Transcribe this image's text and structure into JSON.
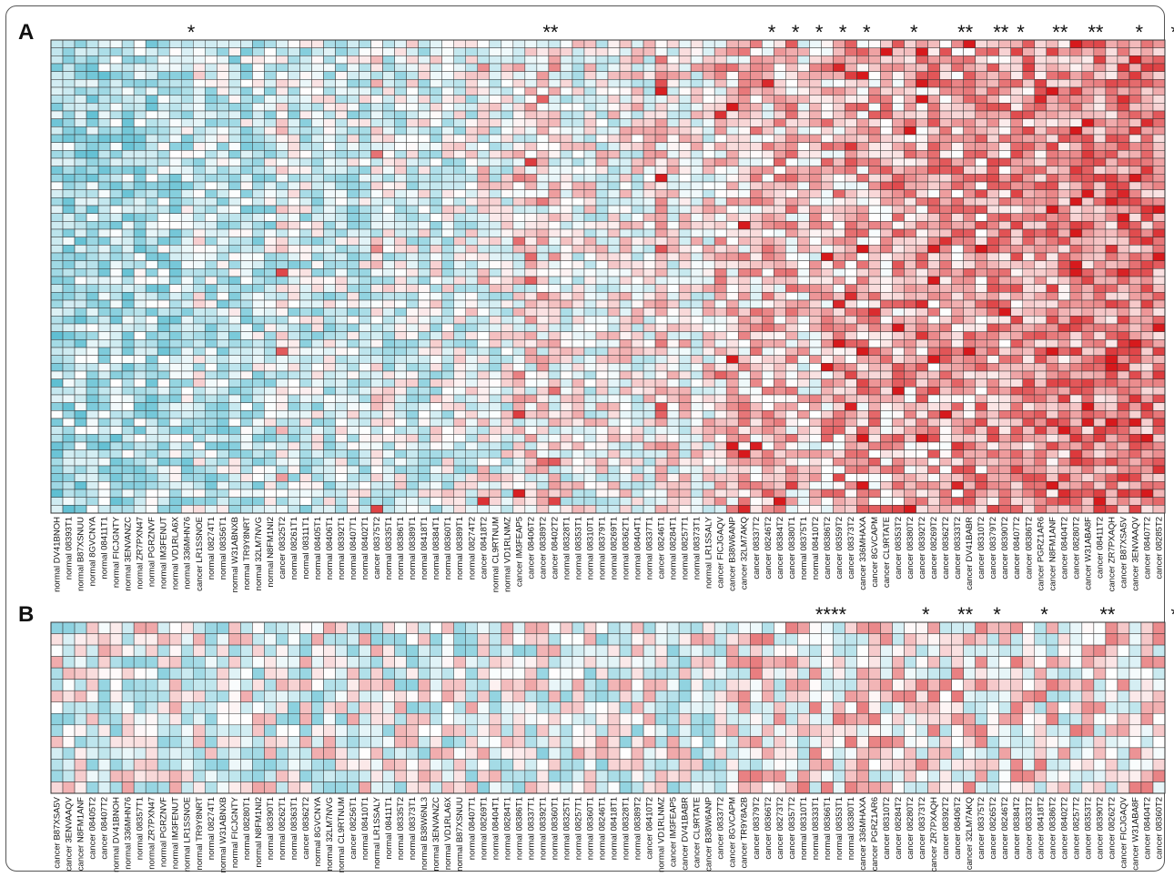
{
  "figure": {
    "panels": [
      {
        "letter": "A",
        "rows": 60,
        "cols": [
          {
            "group": "normal",
            "id": "DV41BNOH"
          },
          {
            "group": "normal",
            "id": "08393T1"
          },
          {
            "group": "normal",
            "id": "B87XSNUU"
          },
          {
            "group": "normal",
            "id": "8GVCNYA"
          },
          {
            "group": "normal",
            "id": "08411T1"
          },
          {
            "group": "normal",
            "id": "FICJGNTY"
          },
          {
            "group": "normal",
            "id": "3ENVANZC"
          },
          {
            "group": "normal",
            "id": "ZR7PXN47"
          },
          {
            "group": "normal",
            "id": "PGRZNVF"
          },
          {
            "group": "normal",
            "id": "IM3FENUT"
          },
          {
            "group": "normal",
            "id": "VD1RLA6X"
          },
          {
            "group": "normal",
            "id": "336MHN76"
          },
          {
            "group": "cancer",
            "id": "LR1SSNOE"
          },
          {
            "group": "normal",
            "id": "08274T1"
          },
          {
            "group": "normal",
            "id": "08356T1"
          },
          {
            "group": "normal",
            "id": "W31ABNXB"
          },
          {
            "group": "normal",
            "id": "TR9Y8NRT"
          },
          {
            "group": "normal",
            "id": "32LM7NVG"
          },
          {
            "group": "normal",
            "id": "N8FM1NI2"
          },
          {
            "group": "cancer",
            "id": "08325T2"
          },
          {
            "group": "normal",
            "id": "08261T1"
          },
          {
            "group": "normal",
            "id": "08311T1"
          },
          {
            "group": "normal",
            "id": "08405T1"
          },
          {
            "group": "normal",
            "id": "08406T1"
          },
          {
            "group": "normal",
            "id": "08392T1"
          },
          {
            "group": "normal",
            "id": "08407T1"
          },
          {
            "group": "normal",
            "id": "08402T1"
          },
          {
            "group": "cancer",
            "id": "08375T2"
          },
          {
            "group": "normal",
            "id": "08335T1"
          },
          {
            "group": "normal",
            "id": "08386T1"
          },
          {
            "group": "normal",
            "id": "08389T1"
          },
          {
            "group": "normal",
            "id": "08418T1"
          },
          {
            "group": "normal",
            "id": "08384T1"
          },
          {
            "group": "normal",
            "id": "08360T1"
          },
          {
            "group": "normal",
            "id": "08389T1"
          },
          {
            "group": "normal",
            "id": "08274T2"
          },
          {
            "group": "cancer",
            "id": "08418T2"
          },
          {
            "group": "normal",
            "id": "CL9RTNUM"
          },
          {
            "group": "normal",
            "id": "VD1RLNMZ"
          },
          {
            "group": "cancer",
            "id": "IM3FEAP5"
          },
          {
            "group": "cancer",
            "id": "08406T2"
          },
          {
            "group": "cancer",
            "id": "08389T2"
          },
          {
            "group": "cancer",
            "id": "08402T2"
          },
          {
            "group": "normal",
            "id": "08328T1"
          },
          {
            "group": "normal",
            "id": "08353T1"
          },
          {
            "group": "normal",
            "id": "08310T1"
          },
          {
            "group": "normal",
            "id": "08379T1"
          },
          {
            "group": "normal",
            "id": "08269T1"
          },
          {
            "group": "normal",
            "id": "08362T1"
          },
          {
            "group": "normal",
            "id": "08404T1"
          },
          {
            "group": "normal",
            "id": "08337T1"
          },
          {
            "group": "cancer",
            "id": "08246T1"
          },
          {
            "group": "normal",
            "id": "08284T1"
          },
          {
            "group": "normal",
            "id": "08257T1"
          },
          {
            "group": "normal",
            "id": "08373T1"
          },
          {
            "group": "normal",
            "id": "LR1SSALY"
          },
          {
            "group": "cancer",
            "id": "FICJGAQV"
          },
          {
            "group": "cancer",
            "id": "B38W6ANP"
          },
          {
            "group": "cancer",
            "id": "32LM7AKQ"
          },
          {
            "group": "cancer",
            "id": "08337T2"
          },
          {
            "group": "cancer",
            "id": "08246T2"
          },
          {
            "group": "cancer",
            "id": "08384T2"
          },
          {
            "group": "cancer",
            "id": "08380T1"
          },
          {
            "group": "normal",
            "id": "08375T1"
          },
          {
            "group": "normal",
            "id": "08410T2"
          },
          {
            "group": "cancer",
            "id": "08386T2"
          },
          {
            "group": "cancer",
            "id": "08359T2"
          },
          {
            "group": "cancer",
            "id": "08373T2"
          },
          {
            "group": "cancer",
            "id": "336MHAXA"
          },
          {
            "group": "cancer",
            "id": "8GVCAPM"
          },
          {
            "group": "cancer",
            "id": "CL9RTATE"
          },
          {
            "group": "cancer",
            "id": "08353T2"
          },
          {
            "group": "cancer",
            "id": "08380T2"
          },
          {
            "group": "cancer",
            "id": "08392T2"
          },
          {
            "group": "cancer",
            "id": "08269T2"
          },
          {
            "group": "cancer",
            "id": "08362T2"
          },
          {
            "group": "cancer",
            "id": "08333T2"
          },
          {
            "group": "cancer",
            "id": "DV41BABR"
          },
          {
            "group": "cancer",
            "id": "08310T2"
          },
          {
            "group": "cancer",
            "id": "08379T2"
          },
          {
            "group": "cancer",
            "id": "08390T2"
          },
          {
            "group": "cancer",
            "id": "08407T2"
          },
          {
            "group": "cancer",
            "id": "08386T2"
          },
          {
            "group": "cancer",
            "id": "PGRZ1AR6"
          },
          {
            "group": "cancer",
            "id": "N8FM1ANF"
          },
          {
            "group": "cancer",
            "id": "08404T2"
          },
          {
            "group": "cancer",
            "id": "08280T2"
          },
          {
            "group": "cancer",
            "id": "W31ABA8F"
          },
          {
            "group": "cancer",
            "id": "08411T2"
          },
          {
            "group": "cancer",
            "id": "ZR7PXAQH"
          },
          {
            "group": "cancer",
            "id": "B87XSA5V"
          },
          {
            "group": "cancer",
            "id": "3ENVAAQV"
          },
          {
            "group": "cancer",
            "id": "08407T2"
          },
          {
            "group": "cancer",
            "id": "08285T2"
          }
        ],
        "stars": [
          {
            "col": 11,
            "text": "*"
          },
          {
            "col": 41,
            "text": "**"
          },
          {
            "col": 60,
            "text": "*"
          },
          {
            "col": 62,
            "text": "*"
          },
          {
            "col": 64,
            "text": "*"
          },
          {
            "col": 66,
            "text": "*"
          },
          {
            "col": 68,
            "text": "*"
          },
          {
            "col": 72,
            "text": "*"
          },
          {
            "col": 76,
            "text": "**"
          },
          {
            "col": 79,
            "text": "**"
          },
          {
            "col": 81,
            "text": "*"
          },
          {
            "col": 84,
            "text": "**"
          },
          {
            "col": 87,
            "text": "**"
          },
          {
            "col": 91,
            "text": "*"
          },
          {
            "col": 94,
            "text": "***"
          }
        ]
      },
      {
        "letter": "B",
        "rows": 15,
        "cols": [
          {
            "group": "cancer",
            "id": "B87XSA5V"
          },
          {
            "group": "cancer",
            "id": "3ENVAAQV"
          },
          {
            "group": "cancer",
            "id": "N8FM1ANF"
          },
          {
            "group": "cancer",
            "id": "08405T2"
          },
          {
            "group": "cancer",
            "id": "08407T2"
          },
          {
            "group": "normal",
            "id": "DV41BNOH"
          },
          {
            "group": "normal",
            "id": "336MHN76"
          },
          {
            "group": "normal",
            "id": "08357T1"
          },
          {
            "group": "normal",
            "id": "ZR7PXN47"
          },
          {
            "group": "normal",
            "id": "PGRZNVF"
          },
          {
            "group": "normal",
            "id": "IM3FENUT"
          },
          {
            "group": "normal",
            "id": "LR1SSNOE"
          },
          {
            "group": "normal",
            "id": "TR9Y8NRT"
          },
          {
            "group": "normal",
            "id": "08274T1"
          },
          {
            "group": "normal",
            "id": "W31ABNXB"
          },
          {
            "group": "normal",
            "id": "FICJGNTY"
          },
          {
            "group": "normal",
            "id": "08280T1"
          },
          {
            "group": "normal",
            "id": "N8FM1NI2"
          },
          {
            "group": "normal",
            "id": "08390T1"
          },
          {
            "group": "normal",
            "id": "08262T1"
          },
          {
            "group": "normal",
            "id": "08363T1"
          },
          {
            "group": "cancer",
            "id": "08362T2"
          },
          {
            "group": "normal",
            "id": "8GVCNYA"
          },
          {
            "group": "normal",
            "id": "32LM7NVG"
          },
          {
            "group": "normal",
            "id": "CL9RTNUM"
          },
          {
            "group": "cancer",
            "id": "08256T1"
          },
          {
            "group": "normal",
            "id": "08410T1"
          },
          {
            "group": "normal",
            "id": "LR1SSALY"
          },
          {
            "group": "normal",
            "id": "08411T1"
          },
          {
            "group": "normal",
            "id": "08335T2"
          },
          {
            "group": "normal",
            "id": "08373T1"
          },
          {
            "group": "normal",
            "id": "B38W6NL3"
          },
          {
            "group": "normal",
            "id": "3ENVANZC"
          },
          {
            "group": "normal",
            "id": "VD1RLA6X"
          },
          {
            "group": "normal",
            "id": "B87XSNUU"
          },
          {
            "group": "normal",
            "id": "08407T1"
          },
          {
            "group": "normal",
            "id": "08269T1"
          },
          {
            "group": "normal",
            "id": "08404T1"
          },
          {
            "group": "normal",
            "id": "08284T1"
          },
          {
            "group": "normal",
            "id": "08386T1"
          },
          {
            "group": "normal",
            "id": "08337T1"
          },
          {
            "group": "normal",
            "id": "08392T1"
          },
          {
            "group": "normal",
            "id": "08360T1"
          },
          {
            "group": "normal",
            "id": "08325T1"
          },
          {
            "group": "normal",
            "id": "08257T1"
          },
          {
            "group": "normal",
            "id": "08360T1"
          },
          {
            "group": "normal",
            "id": "08246T1"
          },
          {
            "group": "normal",
            "id": "08418T1"
          },
          {
            "group": "normal",
            "id": "08328T1"
          },
          {
            "group": "normal",
            "id": "08389T2"
          },
          {
            "group": "cancer",
            "id": "08410T2"
          },
          {
            "group": "normal",
            "id": "VD1RLNMZ"
          },
          {
            "group": "cancer",
            "id": "IM3FEAP5"
          },
          {
            "group": "cancer",
            "id": "DV41BABR"
          },
          {
            "group": "cancer",
            "id": "CL9RTATE"
          },
          {
            "group": "cancer",
            "id": "B38W6ANP"
          },
          {
            "group": "cancer",
            "id": "08337T2"
          },
          {
            "group": "cancer",
            "id": "8GVCAPM"
          },
          {
            "group": "cancer",
            "id": "TR9Y8A2B"
          },
          {
            "group": "cancer",
            "id": "08379T2"
          },
          {
            "group": "cancer",
            "id": "08366T2"
          },
          {
            "group": "cancer",
            "id": "08273T2"
          },
          {
            "group": "cancer",
            "id": "08357T2"
          },
          {
            "group": "normal",
            "id": "08310T1"
          },
          {
            "group": "normal",
            "id": "08333T1"
          },
          {
            "group": "normal",
            "id": "08366T1"
          },
          {
            "group": "normal",
            "id": "08353T1"
          },
          {
            "group": "normal",
            "id": "08380T1"
          },
          {
            "group": "cancer",
            "id": "336MHAXA"
          },
          {
            "group": "cancer",
            "id": "PGRZ1AR6"
          },
          {
            "group": "cancer",
            "id": "08310T2"
          },
          {
            "group": "cancer",
            "id": "08284T2"
          },
          {
            "group": "cancer",
            "id": "08280T2"
          },
          {
            "group": "cancer",
            "id": "08373T2"
          },
          {
            "group": "cancer",
            "id": "ZR7PXAQH"
          },
          {
            "group": "cancer",
            "id": "08392T2"
          },
          {
            "group": "cancer",
            "id": "08406T2"
          },
          {
            "group": "cancer",
            "id": "32LM7AKQ"
          },
          {
            "group": "cancer",
            "id": "08375T2"
          },
          {
            "group": "cancer",
            "id": "08265T2"
          },
          {
            "group": "cancer",
            "id": "08246T2"
          },
          {
            "group": "cancer",
            "id": "08384T2"
          },
          {
            "group": "cancer",
            "id": "08333T2"
          },
          {
            "group": "cancer",
            "id": "08418T2"
          },
          {
            "group": "cancer",
            "id": "08386T2"
          },
          {
            "group": "cancer",
            "id": "08402T2"
          },
          {
            "group": "cancer",
            "id": "08257T2"
          },
          {
            "group": "cancer",
            "id": "08353T2"
          },
          {
            "group": "cancer",
            "id": "08390T2"
          },
          {
            "group": "cancer",
            "id": "08262T2"
          },
          {
            "group": "cancer",
            "id": "FICJGAQV"
          },
          {
            "group": "cancer",
            "id": "W31ABA8F"
          },
          {
            "group": "cancer",
            "id": "08404T2"
          },
          {
            "group": "cancer",
            "id": "08360T2"
          }
        ],
        "stars": [
          {
            "col": 64,
            "text": "****"
          },
          {
            "col": 73,
            "text": "*"
          },
          {
            "col": 76,
            "text": "**"
          },
          {
            "col": 79,
            "text": "*"
          },
          {
            "col": 83,
            "text": "*"
          },
          {
            "col": 88,
            "text": "**"
          },
          {
            "col": 94,
            "text": "*"
          },
          {
            "col": 96,
            "text": "**"
          }
        ]
      }
    ]
  },
  "colors": {
    "high": "#d7191c",
    "mid": "#ffffff",
    "low": "#3ab0c8",
    "grid": "#333333",
    "text": "#111111"
  }
}
